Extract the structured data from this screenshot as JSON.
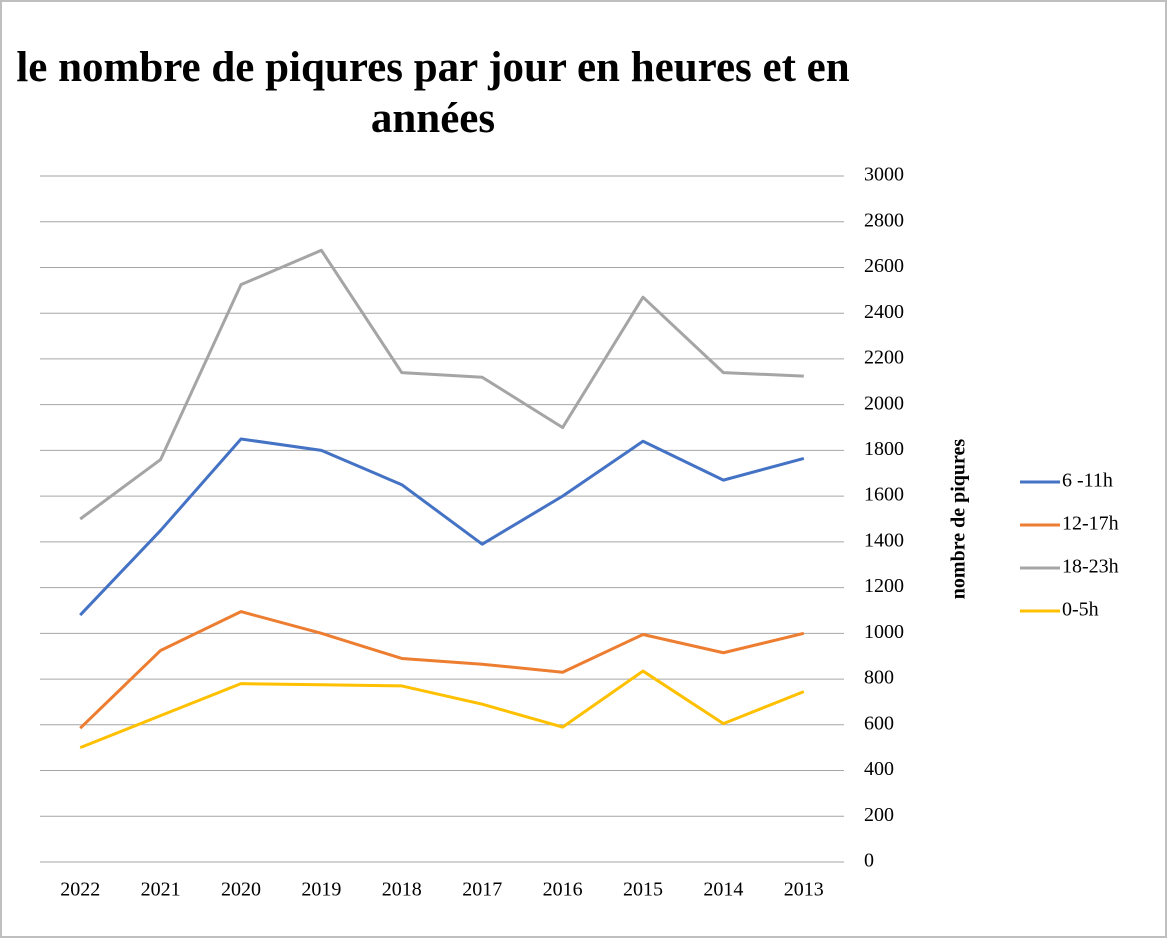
{
  "chart_data": {
    "type": "line",
    "title": "le nombre de piqures par jour en heures et en années",
    "y_label": "nombre de piqures",
    "categories": [
      "2022",
      "2021",
      "2020",
      "2019",
      "2018",
      "2017",
      "2016",
      "2015",
      "2014",
      "2013"
    ],
    "series": [
      {
        "name": "6 -11h",
        "color": "#4472c4",
        "values": [
          1080,
          1450,
          1850,
          1800,
          1650,
          1390,
          1600,
          1840,
          1670,
          1765
        ]
      },
      {
        "name": "12-17h",
        "color": "#ed7d31",
        "values": [
          585,
          925,
          1095,
          1000,
          890,
          865,
          830,
          995,
          915,
          1000
        ]
      },
      {
        "name": "18-23h",
        "color": "#a5a5a5",
        "values": [
          1500,
          1760,
          2525,
          2675,
          2140,
          2120,
          1900,
          2470,
          2140,
          2125
        ]
      },
      {
        "name": "0-5h",
        "color": "#ffc000",
        "values": [
          500,
          640,
          780,
          775,
          770,
          690,
          590,
          835,
          605,
          745
        ]
      }
    ],
    "ylim": [
      0,
      3000
    ],
    "yticks": [
      0,
      200,
      400,
      600,
      800,
      1000,
      1200,
      1400,
      1600,
      1800,
      2000,
      2200,
      2400,
      2600,
      2800,
      3000
    ],
    "y_axis_side": "right",
    "grid": true,
    "legend": "right"
  }
}
